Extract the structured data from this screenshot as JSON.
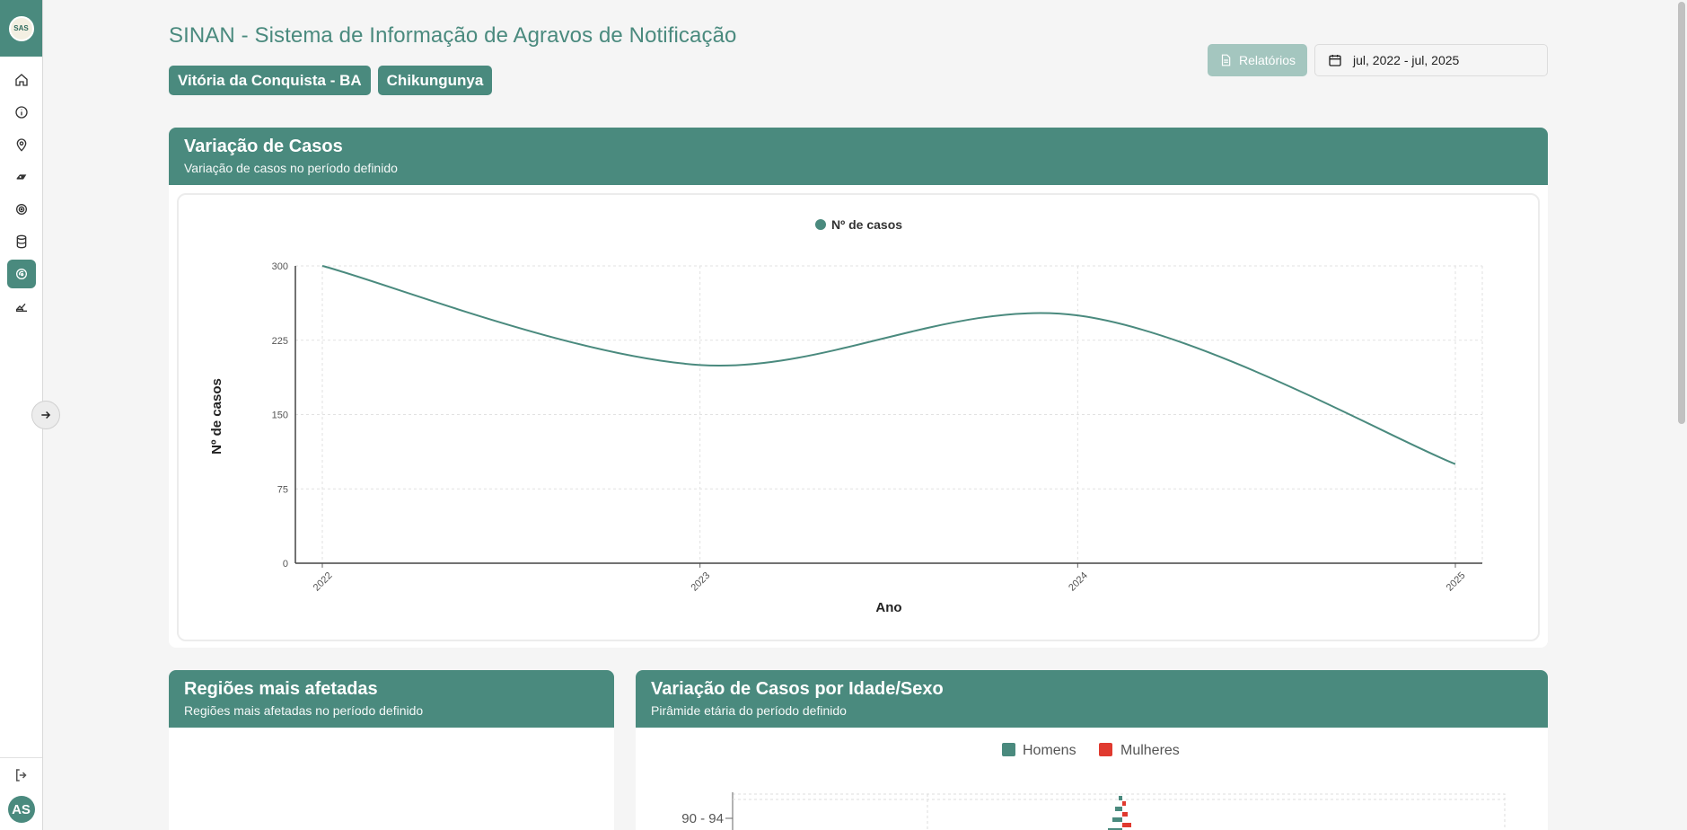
{
  "app": {
    "title": "SINAN - Sistema de Informação de Agravos de Notificação",
    "filters": [
      "Vitória da Conquista - BA",
      "Chikungunya"
    ],
    "reports_label": "Relatórios",
    "date_range": "jul, 2022 - jul, 2025",
    "user_initials": "AS",
    "logo_text": "SAS"
  },
  "sidebar": {
    "items": [
      {
        "icon": "home-icon",
        "active": false
      },
      {
        "icon": "info-icon",
        "active": false
      },
      {
        "icon": "location-pin-icon",
        "active": false
      },
      {
        "icon": "mosquito-icon",
        "active": false
      },
      {
        "icon": "virus-icon",
        "active": false
      },
      {
        "icon": "database-icon",
        "active": false
      },
      {
        "icon": "virus-circle-icon",
        "active": true
      },
      {
        "icon": "report-chart-icon",
        "active": false
      }
    ]
  },
  "cards": {
    "variation": {
      "title": "Variação de Casos",
      "subtitle": "Variação de casos no período definido"
    },
    "regions": {
      "title": "Regiões mais afetadas",
      "subtitle": "Regiões mais afetadas no período definido"
    },
    "pyramid": {
      "title": "Variação de Casos por Idade/Sexo",
      "subtitle": "Pirâmide etária do período definido",
      "legend": [
        "Homens",
        "Mulheres"
      ],
      "first_row_label": "90 - 94"
    }
  },
  "colors": {
    "primary": "#4a8a7e",
    "men": "#4a8a7e",
    "women": "#e03a2f"
  },
  "chart_data": {
    "type": "line",
    "categories": [
      "2022",
      "2023",
      "2024",
      "2025"
    ],
    "series": [
      {
        "name": "Nº de casos",
        "values": [
          300,
          200,
          250,
          100
        ]
      }
    ],
    "xlabel": "Ano",
    "ylabel": "Nº de casos",
    "ylim": [
      0,
      300
    ],
    "yticks": [
      "0",
      "75",
      "150",
      "225",
      "300"
    ],
    "grid": true,
    "legend_position": "top-center"
  }
}
